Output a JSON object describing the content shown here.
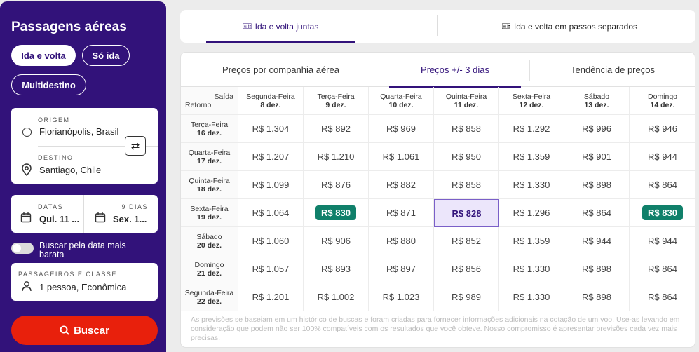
{
  "sidebar": {
    "title": "Passagens aéreas",
    "trip_types": [
      "Ida e volta",
      "Só ida",
      "Multidestino"
    ],
    "origin_label": "ORIGEM",
    "origin_value": "Florianópolis, Brasil",
    "destination_label": "DESTINO",
    "destination_value": "Santiago, Chile",
    "dates_label": "DATAS",
    "dates_value": "Qui. 11 ...",
    "days_label": "9 DIAS",
    "days_value": "Sex. 1...",
    "cheapest_toggle_label": "Buscar pela data mais barata",
    "passengers_label": "PASSAGEIROS E CLASSE",
    "passengers_value": "1 pessoa, Econômica",
    "search_button": "Buscar"
  },
  "top_tabs": [
    "Ida e volta juntas",
    "Ida e volta em passos separados"
  ],
  "sub_tabs": [
    "Preços por companhia aérea",
    "Preços +/- 3 dias",
    "Tendência de preços"
  ],
  "table": {
    "corner_top": "Saída",
    "corner_bottom": "Retorno",
    "columns": [
      {
        "day": "Segunda-Feira",
        "date": "8 dez."
      },
      {
        "day": "Terça-Feira",
        "date": "9 dez."
      },
      {
        "day": "Quarta-Feira",
        "date": "10 dez."
      },
      {
        "day": "Quinta-Feira",
        "date": "11 dez."
      },
      {
        "day": "Sexta-Feira",
        "date": "12 dez."
      },
      {
        "day": "Sábado",
        "date": "13 dez."
      },
      {
        "day": "Domingo",
        "date": "14 dez."
      }
    ],
    "rows": [
      {
        "day": "Terça-Feira",
        "date": "16 dez.",
        "prices": [
          "R$ 1.304",
          "R$ 892",
          "R$ 969",
          "R$ 858",
          "R$ 1.292",
          "R$ 996",
          "R$ 946"
        ]
      },
      {
        "day": "Quarta-Feira",
        "date": "17 dez.",
        "prices": [
          "R$ 1.207",
          "R$ 1.210",
          "R$ 1.061",
          "R$ 950",
          "R$ 1.359",
          "R$ 901",
          "R$ 944"
        ]
      },
      {
        "day": "Quinta-Feira",
        "date": "18 dez.",
        "prices": [
          "R$ 1.099",
          "R$ 876",
          "R$ 882",
          "R$ 858",
          "R$ 1.330",
          "R$ 898",
          "R$ 864"
        ]
      },
      {
        "day": "Sexta-Feira",
        "date": "19 dez.",
        "prices": [
          "R$ 1.064",
          "R$ 830",
          "R$ 871",
          "R$ 828",
          "R$ 1.296",
          "R$ 864",
          "R$ 830"
        ]
      },
      {
        "day": "Sábado",
        "date": "20 dez.",
        "prices": [
          "R$ 1.060",
          "R$ 906",
          "R$ 880",
          "R$ 852",
          "R$ 1.359",
          "R$ 944",
          "R$ 944"
        ]
      },
      {
        "day": "Domingo",
        "date": "21 dez.",
        "prices": [
          "R$ 1.057",
          "R$ 893",
          "R$ 897",
          "R$ 856",
          "R$ 1.330",
          "R$ 898",
          "R$ 864"
        ]
      },
      {
        "day": "Segunda-Feira",
        "date": "22 dez.",
        "prices": [
          "R$ 1.201",
          "R$ 1.002",
          "R$ 1.023",
          "R$ 989",
          "R$ 1.330",
          "R$ 898",
          "R$ 864"
        ]
      }
    ],
    "highlighted_best": [
      [
        3,
        1
      ],
      [
        3,
        6
      ]
    ],
    "selected": [
      3,
      3
    ]
  },
  "disclaimer": "As previsões se baseiam em um histórico de buscas e foram criadas para fornecer informações adicionais na cotação de um voo. Use-as levando em consideração que podem não ser 100% compatíveis com os resultados que você obteve. Nosso compromisso é apresentar previsões cada vez mais precisas.",
  "colors": {
    "brand": "#32127a",
    "accent": "#e8200c",
    "best_price": "#10806a",
    "selected_bg": "#ece6fb"
  }
}
